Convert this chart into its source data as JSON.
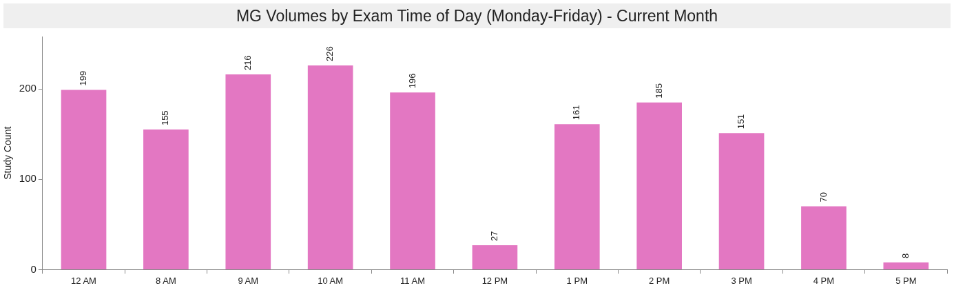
{
  "chart_data": {
    "type": "bar",
    "title": "MG Volumes by Exam Time of Day (Monday-Friday) - Current Month",
    "ylabel": "Study Count",
    "categories": [
      "12 AM",
      "8 AM",
      "9 AM",
      "10 AM",
      "11 AM",
      "12 PM",
      "1 PM",
      "2 PM",
      "3 PM",
      "4 PM",
      "5 PM"
    ],
    "values": [
      199,
      155,
      216,
      226,
      196,
      27,
      161,
      185,
      151,
      70,
      8
    ],
    "color": "#e377c2",
    "ylim": [
      0,
      258
    ],
    "yticks": [
      0,
      100,
      200
    ],
    "grid": false,
    "legend": false,
    "data_labels": true
  }
}
